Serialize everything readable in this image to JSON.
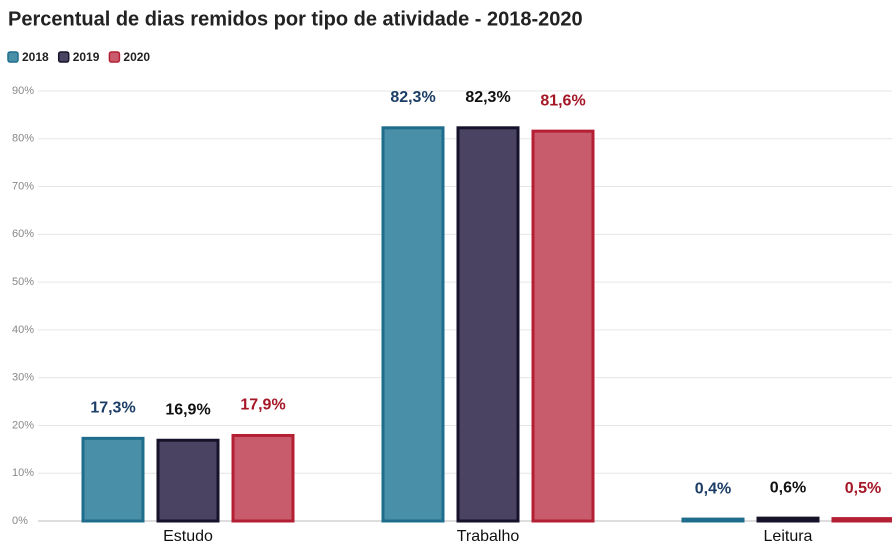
{
  "chart_data": {
    "type": "bar",
    "title": "Percentual de dias remidos por tipo de atividade - 2018-2020",
    "categories": [
      "Estudo",
      "Trabalho",
      "Leitura"
    ],
    "series": [
      {
        "name": "2018",
        "color": "#4a8fa8",
        "border": "#1f6d8c",
        "label_color": "#1b3d66",
        "values": [
          17.3,
          82.3,
          0.4
        ],
        "value_labels": [
          "17,3%",
          "82,3%",
          "0,4%"
        ]
      },
      {
        "name": "2019",
        "color": "#4a4462",
        "border": "#15122a",
        "label_color": "#111111",
        "values": [
          16.9,
          82.3,
          0.6
        ],
        "value_labels": [
          "16,9%",
          "82,3%",
          "0,6%"
        ]
      },
      {
        "name": "2020",
        "color": "#c85c6c",
        "border": "#b51f33",
        "label_color": "#a51626",
        "values": [
          17.9,
          81.6,
          0.5
        ],
        "value_labels": [
          "17,9%",
          "81,6%",
          "0,5%"
        ]
      }
    ],
    "ylim": [
      0,
      90
    ],
    "yticks": [
      {
        "value": 0,
        "label": "0%"
      },
      {
        "value": 10,
        "label": "10%"
      },
      {
        "value": 20,
        "label": "20%"
      },
      {
        "value": 30,
        "label": "30%"
      },
      {
        "value": 40,
        "label": "40%"
      },
      {
        "value": 50,
        "label": "50%"
      },
      {
        "value": 60,
        "label": "60%"
      },
      {
        "value": 70,
        "label": "70%"
      },
      {
        "value": 80,
        "label": "80%"
      },
      {
        "value": 90,
        "label": "90%"
      }
    ],
    "grid": true
  }
}
